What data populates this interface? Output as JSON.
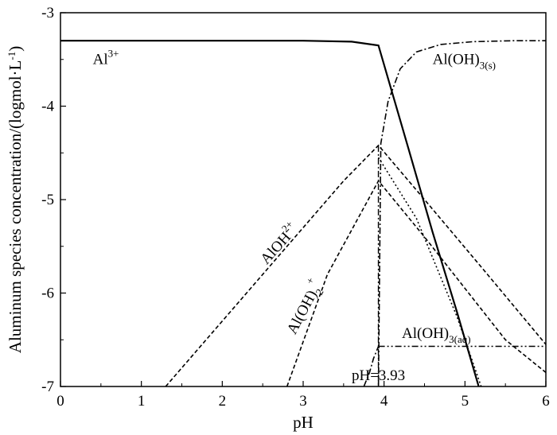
{
  "chart_data": {
    "type": "line",
    "xlabel": "pH",
    "ylabel": "Aluminum species concentration/(logmol·L",
    "ylabel_sup": "-1",
    "ylabel_close": ")",
    "xlim": [
      0,
      6
    ],
    "ylim": [
      -7,
      -3
    ],
    "xticks": [
      "0",
      "1",
      "2",
      "3",
      "4",
      "5",
      "6"
    ],
    "yticks": [
      "-3",
      "-4",
      "-5",
      "-6",
      "-7"
    ],
    "grid": false,
    "series": [
      {
        "key": "al3",
        "style": "solid",
        "x": [
          0,
          3.0,
          3.6,
          3.93,
          4.3,
          4.6,
          4.9,
          5.17
        ],
        "y": [
          -3.3,
          -3.3,
          -3.31,
          -3.35,
          -4.45,
          -5.35,
          -6.2,
          -7.0
        ]
      },
      {
        "key": "aloh2",
        "style": "dash",
        "x": [
          1.3,
          2.4,
          3.5,
          3.93,
          4.5,
          5.2,
          6.0
        ],
        "y": [
          -7.0,
          -5.9,
          -4.8,
          -4.42,
          -5.0,
          -5.72,
          -6.55
        ]
      },
      {
        "key": "aloh2plus",
        "style": "dash",
        "x": [
          2.8,
          3.3,
          3.93,
          4.5,
          5.0,
          5.5,
          6.0
        ],
        "y": [
          -7.0,
          -5.8,
          -4.8,
          -5.4,
          -5.95,
          -6.5,
          -6.85
        ]
      },
      {
        "key": "aloh3s",
        "style": "dashdot",
        "x": [
          3.93,
          3.96,
          4.05,
          4.2,
          4.4,
          4.7,
          5.1,
          5.6,
          6.0
        ],
        "y": [
          -7.0,
          -4.4,
          -3.95,
          -3.6,
          -3.42,
          -3.34,
          -3.31,
          -3.3,
          -3.3
        ]
      },
      {
        "key": "aloh3aq",
        "style": "dashdotdot",
        "x": [
          3.93,
          6.0
        ],
        "y": [
          -6.57,
          -6.57
        ]
      },
      {
        "key": "aloh4",
        "style": "dot",
        "x": [
          3.93,
          4.4,
          4.9,
          5.2
        ],
        "y": [
          -4.55,
          -5.2,
          -6.25,
          -7.0
        ]
      },
      {
        "key": "lowcurve",
        "style": "dashdot",
        "x": [
          3.75,
          3.82,
          3.87,
          3.93
        ],
        "y": [
          -7.0,
          -6.85,
          -6.7,
          -6.57
        ]
      }
    ],
    "vline": {
      "x": 3.93,
      "style": "dashdot"
    },
    "annotations": [
      {
        "key": "al3",
        "base": "Al",
        "sup": "3+",
        "x": 0.4,
        "y": -3.55,
        "rotate": 0
      },
      {
        "key": "aloh3s",
        "base": "Al(OH)",
        "sub": "3(s)",
        "x": 4.6,
        "y": -3.55,
        "rotate": 0
      },
      {
        "key": "aloh2",
        "base": "AlOH",
        "sup": "2+",
        "x": 2.55,
        "y": -5.7,
        "rotate": -48
      },
      {
        "key": "aloh2plus",
        "base": "Al(OH)",
        "sub": "2",
        "sup": "+",
        "x": 2.9,
        "y": -6.45,
        "rotate": -62
      },
      {
        "key": "aloh3aq",
        "base": "Al(OH)",
        "sub": "3(aq)",
        "x": 4.22,
        "y": -6.48,
        "rotate": 0
      },
      {
        "key": "ph",
        "base": "pH=3.93",
        "x": 3.6,
        "y": -6.93,
        "rotate": 0
      }
    ]
  }
}
